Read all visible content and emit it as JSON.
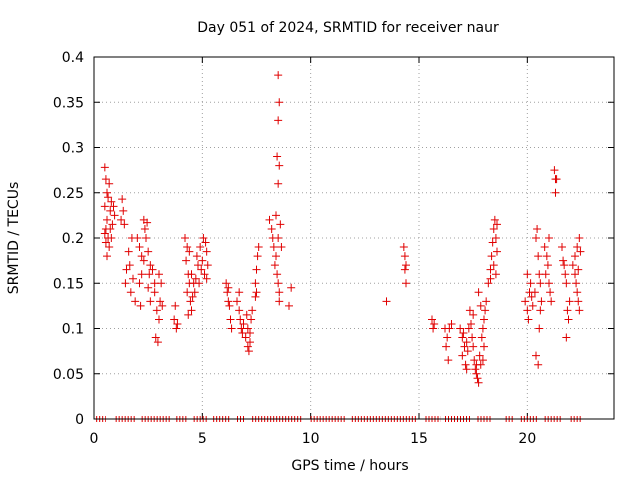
{
  "chart_data": {
    "type": "scatter",
    "title": "Day 051 of 2024, SRMTID for receiver naur",
    "xlabel": "GPS time / hours",
    "ylabel": "SRMTID / TECUs",
    "xlim": [
      0,
      24
    ],
    "ylim": [
      0,
      0.4
    ],
    "xticks": [
      0,
      5,
      10,
      15,
      20
    ],
    "yticks": [
      0,
      0.05,
      0.1,
      0.15,
      0.2,
      0.25,
      0.3,
      0.35,
      0.4
    ],
    "xtick_labels": [
      "0",
      "5",
      "10",
      "15",
      "20"
    ],
    "ytick_labels": [
      "0",
      "0.05",
      "0.1",
      "0.15",
      "0.2",
      "0.25",
      "0.3",
      "0.35",
      "0.4"
    ],
    "grid": true,
    "marker": "+",
    "colors": {
      "points": "#e00000",
      "grid": "#a0a0a0",
      "axis": "#000000"
    },
    "series": [
      {
        "name": "SRMTID",
        "points": [
          [
            0.5,
            0.278
          ],
          [
            0.55,
            0.265
          ],
          [
            0.6,
            0.25
          ],
          [
            0.5,
            0.235
          ],
          [
            0.6,
            0.22
          ],
          [
            0.55,
            0.21
          ],
          [
            0.65,
            0.2
          ],
          [
            0.7,
            0.19
          ],
          [
            0.6,
            0.18
          ],
          [
            0.7,
            0.26
          ],
          [
            0.8,
            0.24
          ],
          [
            0.75,
            0.23
          ],
          [
            0.85,
            0.215
          ],
          [
            0.9,
            0.235
          ],
          [
            0.8,
            0.2
          ],
          [
            0.95,
            0.225
          ],
          [
            0.5,
            0.205
          ],
          [
            0.65,
            0.245
          ],
          [
            0.75,
            0.21
          ],
          [
            0.55,
            0.195
          ],
          [
            1.3,
            0.243
          ],
          [
            1.35,
            0.23
          ],
          [
            1.25,
            0.22
          ],
          [
            1.4,
            0.215
          ],
          [
            1.5,
            0.165
          ],
          [
            1.45,
            0.15
          ],
          [
            1.6,
            0.185
          ],
          [
            1.7,
            0.14
          ],
          [
            1.8,
            0.155
          ],
          [
            1.9,
            0.13
          ],
          [
            1.75,
            0.2
          ],
          [
            1.65,
            0.17
          ],
          [
            2.0,
            0.2
          ],
          [
            2.1,
            0.19
          ],
          [
            2.2,
            0.18
          ],
          [
            2.3,
            0.22
          ],
          [
            2.35,
            0.21
          ],
          [
            2.4,
            0.2
          ],
          [
            2.3,
            0.175
          ],
          [
            2.2,
            0.16
          ],
          [
            2.1,
            0.15
          ],
          [
            2.5,
            0.185
          ],
          [
            2.6,
            0.17
          ],
          [
            2.7,
            0.165
          ],
          [
            2.8,
            0.15
          ],
          [
            2.5,
            0.145
          ],
          [
            2.6,
            0.13
          ],
          [
            2.45,
            0.217
          ],
          [
            2.15,
            0.125
          ],
          [
            2.55,
            0.16
          ],
          [
            2.8,
            0.14
          ],
          [
            2.9,
            0.12
          ],
          [
            3.0,
            0.11
          ],
          [
            2.85,
            0.09
          ],
          [
            2.95,
            0.085
          ],
          [
            3.05,
            0.13
          ],
          [
            3.1,
            0.15
          ],
          [
            3.15,
            0.125
          ],
          [
            3.0,
            0.16
          ],
          [
            3.7,
            0.11
          ],
          [
            3.8,
            0.1
          ],
          [
            3.75,
            0.125
          ],
          [
            3.85,
            0.105
          ],
          [
            4.2,
            0.2
          ],
          [
            4.3,
            0.19
          ],
          [
            4.25,
            0.175
          ],
          [
            4.35,
            0.16
          ],
          [
            4.4,
            0.15
          ],
          [
            4.3,
            0.14
          ],
          [
            4.45,
            0.13
          ],
          [
            4.5,
            0.12
          ],
          [
            4.4,
            0.185
          ],
          [
            4.5,
            0.16
          ],
          [
            4.6,
            0.15
          ],
          [
            4.55,
            0.135
          ],
          [
            4.65,
            0.14
          ],
          [
            4.7,
            0.155
          ],
          [
            4.75,
            0.18
          ],
          [
            4.8,
            0.17
          ],
          [
            4.9,
            0.19
          ],
          [
            4.95,
            0.165
          ],
          [
            5.0,
            0.175
          ],
          [
            5.1,
            0.16
          ],
          [
            5.15,
            0.195
          ],
          [
            5.2,
            0.185
          ],
          [
            5.25,
            0.17
          ],
          [
            4.85,
            0.15
          ],
          [
            5.05,
            0.2
          ],
          [
            5.2,
            0.155
          ],
          [
            4.35,
            0.115
          ],
          [
            6.1,
            0.15
          ],
          [
            6.15,
            0.14
          ],
          [
            6.2,
            0.13
          ],
          [
            6.25,
            0.125
          ],
          [
            6.3,
            0.11
          ],
          [
            6.35,
            0.1
          ],
          [
            6.2,
            0.145
          ],
          [
            6.6,
            0.13
          ],
          [
            6.7,
            0.12
          ],
          [
            6.75,
            0.11
          ],
          [
            6.8,
            0.1
          ],
          [
            6.85,
            0.095
          ],
          [
            6.9,
            0.105
          ],
          [
            6.7,
            0.14
          ],
          [
            7.0,
            0.09
          ],
          [
            7.1,
            0.08
          ],
          [
            7.15,
            0.075
          ],
          [
            7.2,
            0.095
          ],
          [
            7.25,
            0.11
          ],
          [
            7.3,
            0.12
          ],
          [
            7.1,
            0.1
          ],
          [
            7.05,
            0.115
          ],
          [
            7.2,
            0.085
          ],
          [
            7.45,
            0.15
          ],
          [
            7.5,
            0.165
          ],
          [
            7.55,
            0.18
          ],
          [
            7.6,
            0.19
          ],
          [
            7.45,
            0.135
          ],
          [
            7.5,
            0.14
          ],
          [
            8.1,
            0.22
          ],
          [
            8.2,
            0.21
          ],
          [
            8.25,
            0.2
          ],
          [
            8.3,
            0.19
          ],
          [
            8.4,
            0.18
          ],
          [
            8.35,
            0.17
          ],
          [
            8.45,
            0.16
          ],
          [
            8.5,
            0.15
          ],
          [
            8.55,
            0.14
          ],
          [
            8.4,
            0.225
          ],
          [
            8.5,
            0.2
          ],
          [
            8.5,
            0.38
          ],
          [
            8.55,
            0.35
          ],
          [
            8.5,
            0.33
          ],
          [
            8.45,
            0.29
          ],
          [
            8.55,
            0.28
          ],
          [
            8.5,
            0.26
          ],
          [
            8.6,
            0.215
          ],
          [
            8.65,
            0.19
          ],
          [
            8.55,
            0.13
          ],
          [
            9.0,
            0.125
          ],
          [
            9.1,
            0.145
          ],
          [
            13.5,
            0.13
          ],
          [
            14.3,
            0.19
          ],
          [
            14.35,
            0.18
          ],
          [
            14.4,
            0.17
          ],
          [
            14.35,
            0.165
          ],
          [
            14.4,
            0.15
          ],
          [
            15.6,
            0.11
          ],
          [
            15.7,
            0.105
          ],
          [
            15.65,
            0.1
          ],
          [
            16.2,
            0.1
          ],
          [
            16.3,
            0.09
          ],
          [
            16.25,
            0.08
          ],
          [
            16.35,
            0.065
          ],
          [
            16.4,
            0.1
          ],
          [
            16.5,
            0.105
          ],
          [
            16.9,
            0.1
          ],
          [
            17.0,
            0.09
          ],
          [
            17.1,
            0.08
          ],
          [
            17.0,
            0.07
          ],
          [
            17.15,
            0.06
          ],
          [
            17.2,
            0.085
          ],
          [
            17.3,
            0.1
          ],
          [
            17.35,
            0.12
          ],
          [
            17.4,
            0.105
          ],
          [
            17.25,
            0.075
          ],
          [
            17.45,
            0.09
          ],
          [
            17.5,
            0.08
          ],
          [
            17.55,
            0.065
          ],
          [
            17.6,
            0.055
          ],
          [
            17.65,
            0.05
          ],
          [
            17.7,
            0.045
          ],
          [
            17.75,
            0.04
          ],
          [
            17.65,
            0.06
          ],
          [
            17.8,
            0.07
          ],
          [
            17.85,
            0.06
          ],
          [
            17.9,
            0.09
          ],
          [
            17.95,
            0.1
          ],
          [
            18.0,
            0.11
          ],
          [
            18.05,
            0.12
          ],
          [
            18.1,
            0.13
          ],
          [
            17.75,
            0.14
          ],
          [
            17.85,
            0.125
          ],
          [
            17.5,
            0.115
          ],
          [
            17.05,
            0.095
          ],
          [
            17.2,
            0.055
          ],
          [
            18.0,
            0.08
          ],
          [
            17.95,
            0.065
          ],
          [
            18.2,
            0.15
          ],
          [
            18.3,
            0.165
          ],
          [
            18.35,
            0.18
          ],
          [
            18.4,
            0.195
          ],
          [
            18.45,
            0.21
          ],
          [
            18.5,
            0.22
          ],
          [
            18.55,
            0.2
          ],
          [
            18.6,
            0.185
          ],
          [
            18.3,
            0.155
          ],
          [
            18.45,
            0.17
          ],
          [
            18.55,
            0.16
          ],
          [
            18.6,
            0.215
          ],
          [
            19.9,
            0.13
          ],
          [
            20.0,
            0.12
          ],
          [
            20.05,
            0.11
          ],
          [
            20.1,
            0.14
          ],
          [
            20.15,
            0.15
          ],
          [
            20.2,
            0.135
          ],
          [
            20.25,
            0.125
          ],
          [
            20.0,
            0.16
          ],
          [
            20.4,
            0.2
          ],
          [
            20.45,
            0.21
          ],
          [
            20.5,
            0.18
          ],
          [
            20.55,
            0.16
          ],
          [
            20.6,
            0.15
          ],
          [
            20.65,
            0.13
          ],
          [
            20.4,
            0.07
          ],
          [
            20.5,
            0.06
          ],
          [
            20.55,
            0.1
          ],
          [
            20.6,
            0.12
          ],
          [
            20.35,
            0.14
          ],
          [
            20.8,
            0.19
          ],
          [
            20.9,
            0.18
          ],
          [
            20.95,
            0.17
          ],
          [
            21.0,
            0.15
          ],
          [
            21.05,
            0.14
          ],
          [
            21.1,
            0.13
          ],
          [
            21.0,
            0.2
          ],
          [
            20.85,
            0.16
          ],
          [
            21.25,
            0.275
          ],
          [
            21.3,
            0.265
          ],
          [
            21.35,
            0.265
          ],
          [
            21.3,
            0.25
          ],
          [
            21.6,
            0.19
          ],
          [
            21.7,
            0.17
          ],
          [
            21.75,
            0.16
          ],
          [
            21.8,
            0.15
          ],
          [
            21.85,
            0.12
          ],
          [
            21.9,
            0.11
          ],
          [
            21.8,
            0.09
          ],
          [
            21.65,
            0.175
          ],
          [
            21.95,
            0.13
          ],
          [
            22.1,
            0.17
          ],
          [
            22.2,
            0.16
          ],
          [
            22.25,
            0.15
          ],
          [
            22.3,
            0.14
          ],
          [
            22.35,
            0.13
          ],
          [
            22.4,
            0.12
          ],
          [
            22.2,
            0.18
          ],
          [
            22.3,
            0.19
          ],
          [
            22.4,
            0.2
          ],
          [
            22.45,
            0.185
          ],
          [
            22.35,
            0.165
          ]
        ]
      }
    ],
    "zero_runs": [
      [
        0.1,
        0.55
      ],
      [
        1.0,
        1.9
      ],
      [
        2.2,
        3.5
      ],
      [
        3.8,
        4.3
      ],
      [
        4.6,
        5.2
      ],
      [
        5.5,
        6.3
      ],
      [
        6.6,
        7.0
      ],
      [
        7.3,
        9.6
      ],
      [
        10.0,
        11.6
      ],
      [
        11.9,
        14.9
      ],
      [
        15.3,
        16.0
      ],
      [
        16.2,
        17.4
      ],
      [
        17.7,
        18.3
      ],
      [
        19.0,
        19.4
      ],
      [
        19.7,
        20.5
      ],
      [
        20.8,
        21.6
      ],
      [
        22.0,
        22.5
      ]
    ]
  }
}
